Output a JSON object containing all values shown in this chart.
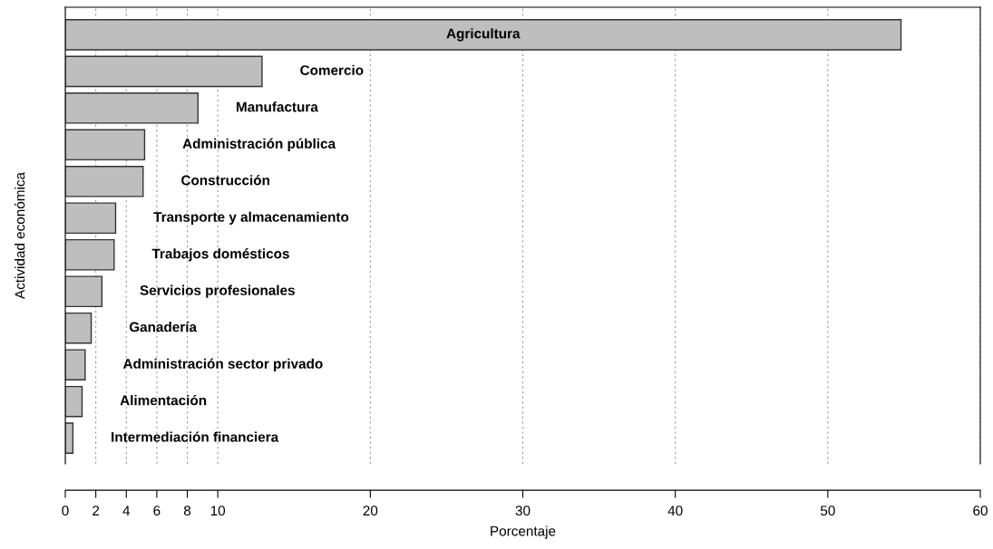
{
  "chart_data": {
    "type": "bar",
    "orientation": "horizontal",
    "xlabel": "Porcentaje",
    "ylabel": "Actividad económica",
    "categories": [
      "Agricultura",
      "Comercio",
      "Manufactura",
      "Administración pública",
      "Construcción",
      "Transporte y almacenamiento",
      "Trabajos domésticos",
      "Servicios profesionales",
      "Ganadería",
      "Administración sector privado",
      "Alimentación",
      "Intermediación financiera"
    ],
    "values": [
      54.8,
      12.9,
      8.7,
      5.2,
      5.1,
      3.3,
      3.2,
      2.4,
      1.7,
      1.3,
      1.1,
      0.5
    ],
    "color": "#bebebe",
    "xlim": [
      0,
      60
    ],
    "xticks": [
      0,
      2,
      4,
      6,
      8,
      10,
      20,
      30,
      40,
      50,
      60
    ],
    "grid": "x",
    "tick_labels": "x"
  }
}
